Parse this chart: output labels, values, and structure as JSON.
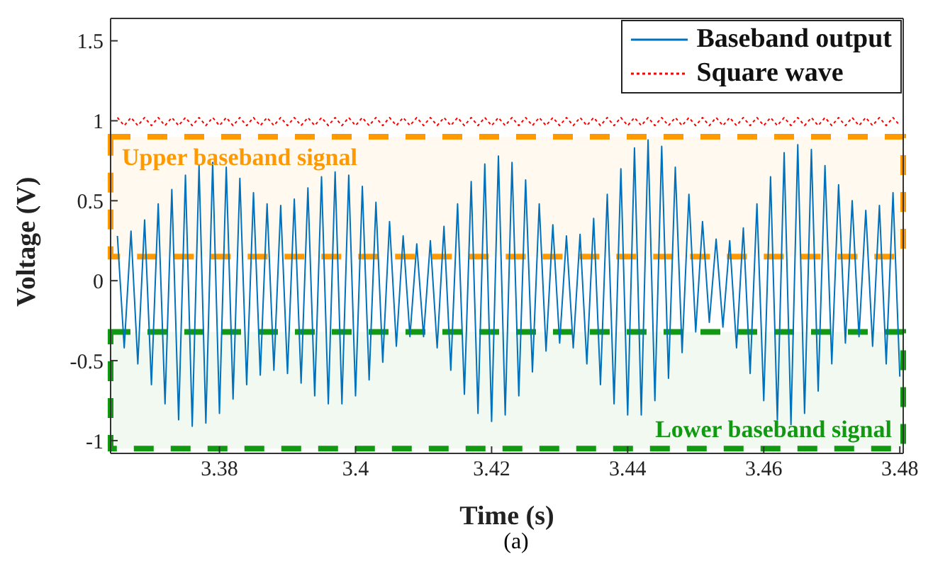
{
  "chart_data": {
    "type": "line",
    "xlabel": "Time (s)",
    "ylabel": "Voltage (V)",
    "annotations": [
      "(a)"
    ],
    "x": [
      3.365,
      3.366,
      3.367,
      3.368,
      3.369,
      3.37,
      3.371,
      3.372,
      3.373,
      3.374,
      3.375,
      3.376,
      3.377,
      3.378,
      3.379,
      3.38,
      3.381,
      3.382,
      3.383,
      3.384,
      3.385,
      3.386,
      3.387,
      3.388,
      3.389,
      3.39,
      3.391,
      3.392,
      3.393,
      3.394,
      3.395,
      3.396,
      3.397,
      3.398,
      3.399,
      3.4,
      3.401,
      3.402,
      3.403,
      3.404,
      3.405,
      3.406,
      3.407,
      3.408,
      3.409,
      3.41,
      3.411,
      3.412,
      3.413,
      3.414,
      3.415,
      3.416,
      3.417,
      3.418,
      3.419,
      3.42,
      3.421,
      3.422,
      3.423,
      3.424,
      3.425,
      3.426,
      3.427,
      3.428,
      3.429,
      3.43,
      3.431,
      3.432,
      3.433,
      3.434,
      3.435,
      3.436,
      3.437,
      3.438,
      3.439,
      3.44,
      3.441,
      3.442,
      3.443,
      3.444,
      3.445,
      3.446,
      3.447,
      3.448,
      3.449,
      3.45,
      3.451,
      3.452,
      3.453,
      3.454,
      3.455,
      3.456,
      3.457,
      3.458,
      3.459,
      3.46,
      3.461,
      3.462,
      3.463,
      3.464,
      3.465,
      3.466,
      3.467,
      3.468,
      3.469,
      3.47,
      3.471,
      3.472,
      3.473,
      3.474,
      3.475,
      3.476,
      3.477,
      3.478,
      3.479,
      3.48
    ],
    "series": [
      {
        "name": "Baseband output",
        "color": "#0072bd",
        "line_style": "solid",
        "values": [
          0.28,
          -0.42,
          0.31,
          -0.52,
          0.38,
          -0.65,
          0.48,
          -0.77,
          0.57,
          -0.87,
          0.66,
          -0.91,
          0.72,
          -0.89,
          0.74,
          -0.83,
          0.71,
          -0.74,
          0.64,
          -0.65,
          0.55,
          -0.59,
          0.48,
          -0.56,
          0.47,
          -0.58,
          0.51,
          -0.64,
          0.58,
          -0.72,
          0.65,
          -0.77,
          0.68,
          -0.77,
          0.66,
          -0.72,
          0.59,
          -0.62,
          0.49,
          -0.51,
          0.37,
          -0.41,
          0.28,
          -0.35,
          0.23,
          -0.35,
          0.25,
          -0.42,
          0.34,
          -0.56,
          0.48,
          -0.71,
          0.62,
          -0.83,
          0.73,
          -0.88,
          0.78,
          -0.84,
          0.74,
          -0.72,
          0.63,
          -0.57,
          0.48,
          -0.44,
          0.35,
          -0.39,
          0.28,
          -0.42,
          0.29,
          -0.52,
          0.39,
          -0.65,
          0.54,
          -0.77,
          0.7,
          -0.84,
          0.83,
          -0.84,
          0.88,
          -0.75,
          0.84,
          -0.61,
          0.71,
          -0.45,
          0.54,
          -0.32,
          0.37,
          -0.26,
          0.26,
          -0.29,
          0.25,
          -0.42,
          0.33,
          -0.58,
          0.48,
          -0.75,
          0.65,
          -0.87,
          0.8,
          -0.9,
          0.85,
          -0.83,
          0.82,
          -0.69,
          0.72,
          -0.52,
          0.6,
          -0.39,
          0.5,
          -0.35,
          0.44,
          -0.41,
          0.47,
          -0.52,
          0.55,
          -0.6
        ]
      },
      {
        "name": "Square wave",
        "color": "#ff0000",
        "line_style": "dotted",
        "values": [
          1.02,
          0.97,
          1.02,
          0.97,
          1.02,
          0.97,
          1.02,
          0.97,
          1.02,
          0.97,
          1.02,
          0.97,
          1.02,
          0.97,
          1.02,
          0.97,
          1.02,
          0.97,
          1.02,
          0.97,
          1.02,
          0.97,
          1.02,
          0.97,
          1.02,
          0.97,
          1.02,
          0.97,
          1.02,
          0.97,
          1.02,
          0.97,
          1.02,
          0.97,
          1.02,
          0.97,
          1.02,
          0.97,
          1.02,
          0.97,
          1.02,
          0.97,
          1.02,
          0.97,
          1.02,
          0.97,
          1.02,
          0.97,
          1.02,
          0.97,
          1.02,
          0.97,
          1.02,
          0.97,
          1.02,
          0.97,
          1.02,
          0.97,
          1.02,
          0.97,
          1.02,
          0.97,
          1.02,
          0.97,
          1.02,
          0.97,
          1.02,
          0.97,
          1.02,
          0.97,
          1.02,
          0.97,
          1.02,
          0.97,
          1.02,
          0.97,
          1.02,
          0.97,
          1.02,
          0.97,
          1.02,
          0.97,
          1.02,
          0.97,
          1.02,
          0.97,
          1.02,
          0.97,
          1.02,
          0.97,
          1.02,
          0.97,
          1.02,
          0.97,
          1.02,
          0.97,
          1.02,
          0.97,
          1.02,
          0.97,
          1.02,
          0.97,
          1.02,
          0.97,
          1.02,
          0.97,
          1.02,
          0.97,
          1.02,
          0.97,
          1.02,
          0.97,
          1.02,
          0.97,
          1.02,
          0.97
        ]
      }
    ],
    "xlim": [
      3.364,
      3.4805
    ],
    "xticks": [
      3.38,
      3.4,
      3.42,
      3.44,
      3.46,
      3.48
    ],
    "ylim": [
      -1.08,
      1.64
    ],
    "yticks": [
      -1,
      -0.5,
      0,
      0.5,
      1,
      1.5
    ],
    "bands": [
      {
        "axis": "y",
        "from": 0.15,
        "to": 0.9,
        "label": "Upper baseband signal",
        "color": "#ff9900"
      },
      {
        "axis": "y",
        "from": -1.05,
        "to": -0.32,
        "label": "Lower baseband signal",
        "color": "#119911"
      }
    ],
    "legend": "top right",
    "marker": "none"
  }
}
